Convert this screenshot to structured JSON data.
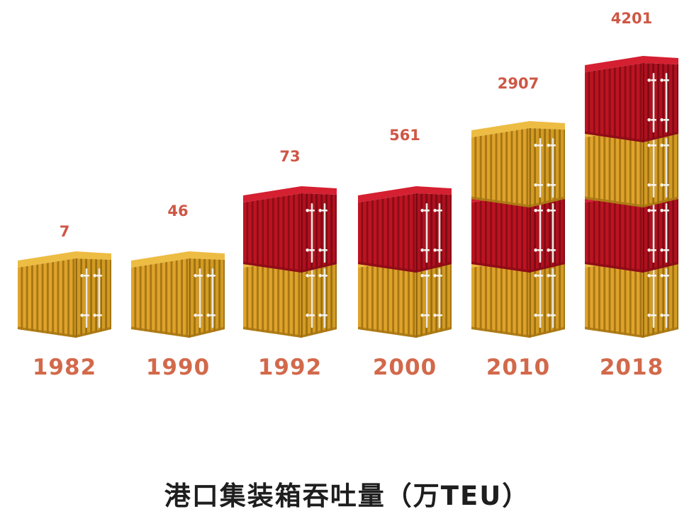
{
  "title": "港口集装箱吞吐量（万TEU）",
  "colors": {
    "background": "#FFFFFF",
    "value_label": "#CE5745",
    "year_label": "#D2694B",
    "title_text": "#1E1E1E",
    "yellow": {
      "face": "#DFA32B",
      "rib": "#A87714",
      "top": "#EDBC43",
      "door": "#D39B24",
      "door_rib": "#9E7110"
    },
    "red": {
      "face": "#BE1322",
      "rib": "#8B0D16",
      "top": "#D42031",
      "door": "#B01020",
      "door_rib": "#7F0A12"
    },
    "rod": "#EAE8E3",
    "rod_bracket": "#F6F4F0"
  },
  "chart_data": {
    "type": "bar",
    "subtype": "isometric-shipping-container-pictogram",
    "title": "港口集装箱吞吐量（万TEU）",
    "unit": "万TEU",
    "categories": [
      "1982",
      "1990",
      "1992",
      "2000",
      "2010",
      "2018"
    ],
    "values": [
      7,
      46,
      73,
      561,
      2907,
      4201
    ],
    "stacks": [
      {
        "year": "1982",
        "value": "7",
        "containers_bottom_to_top": [
          "yellow"
        ]
      },
      {
        "year": "1990",
        "value": "46",
        "containers_bottom_to_top": [
          "yellow"
        ]
      },
      {
        "year": "1992",
        "value": "73",
        "containers_bottom_to_top": [
          "yellow",
          "red"
        ]
      },
      {
        "year": "2000",
        "value": "561",
        "containers_bottom_to_top": [
          "yellow",
          "red"
        ]
      },
      {
        "year": "2010",
        "value": "2907",
        "containers_bottom_to_top": [
          "yellow",
          "red",
          "yellow"
        ]
      },
      {
        "year": "2018",
        "value": "4201",
        "containers_bottom_to_top": [
          "yellow",
          "red",
          "yellow",
          "red"
        ]
      }
    ],
    "legend": null,
    "axes": {
      "x_ticks": [
        "1982",
        "1990",
        "1992",
        "2000",
        "2010",
        "2018"
      ],
      "y_axis_visible": false,
      "gridlines": false
    }
  }
}
